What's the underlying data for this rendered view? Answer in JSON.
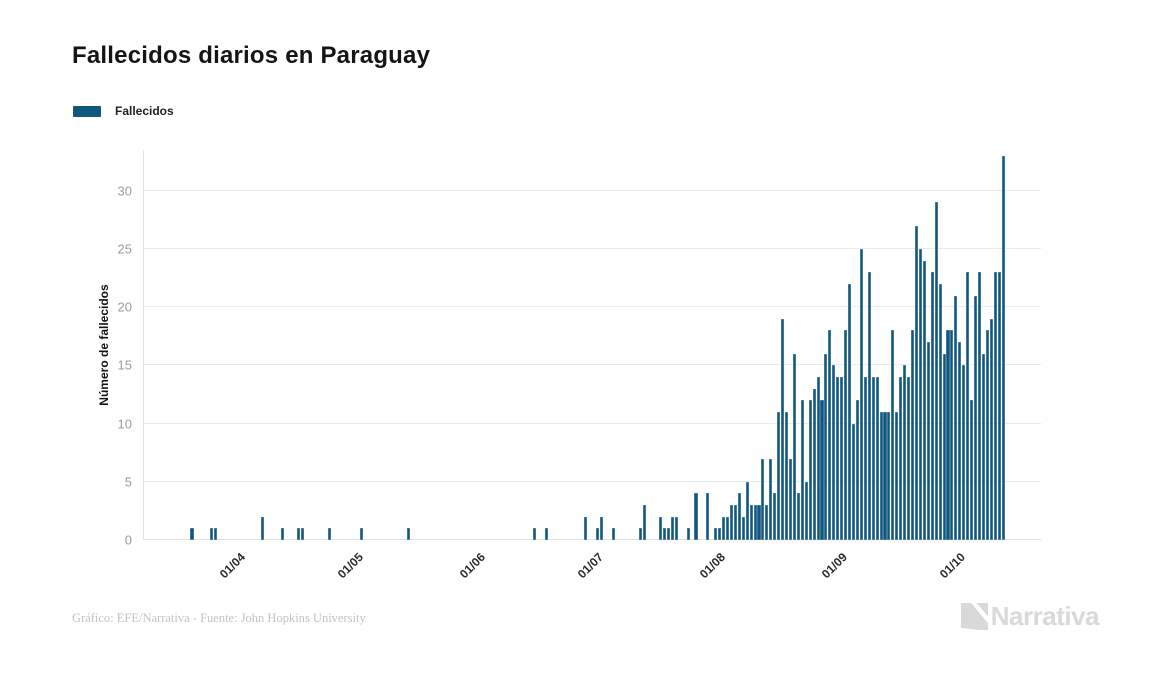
{
  "header": {
    "title": "Fallecidos diarios en Paraguay"
  },
  "legend": {
    "label": "Fallecidos",
    "swatch_color": "#10567d"
  },
  "chart_data": {
    "type": "bar",
    "title": "Fallecidos diarios en Paraguay",
    "xlabel": "",
    "ylabel": "Número de fallecidos",
    "ylim": [
      0,
      33.5
    ],
    "y_ticks": [
      0,
      5,
      10,
      15,
      20,
      25,
      30
    ],
    "grid": "horizontal",
    "legend_position": "top-left",
    "bar_color": "#10567d",
    "x_tick_labels": [
      "01/04",
      "01/05",
      "01/06",
      "01/07",
      "01/08",
      "01/09",
      "01/10"
    ],
    "x_tick_day_indices": [
      12,
      42,
      73,
      103,
      134,
      165,
      195
    ],
    "x_note": "one bar per day, first bar approx 20/03, last bar approx 12/10",
    "series": [
      {
        "name": "Fallecidos",
        "values": [
          1,
          0,
          0,
          0,
          0,
          1,
          1,
          0,
          0,
          0,
          0,
          0,
          0,
          0,
          0,
          0,
          0,
          0,
          2,
          0,
          0,
          0,
          0,
          1,
          0,
          0,
          0,
          1,
          1,
          0,
          0,
          0,
          0,
          0,
          0,
          1,
          0,
          0,
          0,
          0,
          0,
          0,
          0,
          1,
          0,
          0,
          0,
          0,
          0,
          0,
          0,
          0,
          0,
          0,
          0,
          1,
          0,
          0,
          0,
          0,
          0,
          0,
          0,
          0,
          0,
          0,
          0,
          0,
          0,
          0,
          0,
          0,
          0,
          0,
          0,
          0,
          0,
          0,
          0,
          0,
          0,
          0,
          0,
          0,
          0,
          0,
          0,
          1,
          0,
          0,
          1,
          0,
          0,
          0,
          0,
          0,
          0,
          0,
          0,
          0,
          2,
          0,
          0,
          1,
          2,
          0,
          0,
          1,
          0,
          0,
          0,
          0,
          0,
          0,
          1,
          3,
          0,
          0,
          0,
          2,
          1,
          1,
          2,
          2,
          0,
          0,
          1,
          0,
          4,
          0,
          0,
          4,
          0,
          1,
          1,
          2,
          2,
          3,
          3,
          4,
          2,
          5,
          3,
          3,
          3,
          7,
          3,
          7,
          4,
          11,
          19,
          11,
          7,
          16,
          4,
          12,
          5,
          12,
          13,
          14,
          12,
          16,
          18,
          15,
          14,
          14,
          18,
          22,
          10,
          12,
          25,
          14,
          23,
          14,
          14,
          11,
          11,
          11,
          18,
          11,
          14,
          15,
          14,
          18,
          27,
          25,
          24,
          17,
          23,
          29,
          22,
          16,
          18,
          18,
          21,
          17,
          15,
          23,
          12,
          21,
          23,
          16,
          18,
          19,
          23,
          23,
          33
        ]
      }
    ]
  },
  "footer": {
    "credit": "Gráfico: EFE/Narrativa - Fuente: John Hopkins University",
    "brand": "Narrativa"
  }
}
